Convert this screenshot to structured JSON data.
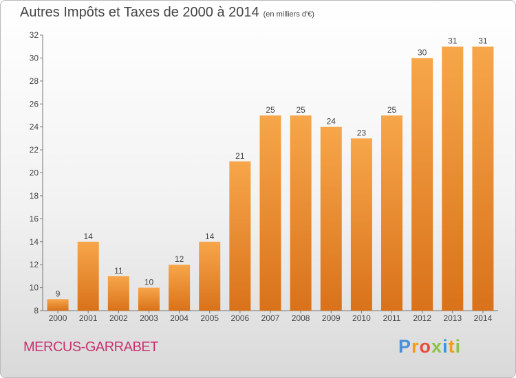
{
  "chart_data": {
    "type": "bar",
    "title": "Autres Impôts et Taxes de 2000 à 2014",
    "subtitle": "(en milliers d'€)",
    "categories": [
      "2000",
      "2001",
      "2002",
      "2003",
      "2004",
      "2005",
      "2006",
      "2007",
      "2008",
      "2009",
      "2010",
      "2011",
      "2012",
      "2013",
      "2014"
    ],
    "values": [
      9,
      14,
      11,
      10,
      12,
      14,
      21,
      25,
      25,
      24,
      23,
      25,
      30,
      31,
      31
    ],
    "ylim": [
      8,
      32
    ],
    "yticks": [
      8,
      10,
      12,
      14,
      16,
      18,
      20,
      22,
      24,
      26,
      28,
      30,
      32
    ],
    "grid": false,
    "legend": "none",
    "colors": {
      "bar_top": "#f7a64a",
      "bar_bottom": "#d9721a",
      "axis": "#777777",
      "label": "#444444"
    }
  },
  "footer": {
    "commune": "MERCUS-GARRABET",
    "logo_letters": [
      "P",
      "r",
      "o",
      "x",
      "i",
      "t",
      "i"
    ],
    "logo_colors": [
      "#4a90d9",
      "#f39c12",
      "#e74c3c",
      "#8bc34a",
      "#3498db",
      "#f39c12",
      "#8bc34a"
    ]
  }
}
